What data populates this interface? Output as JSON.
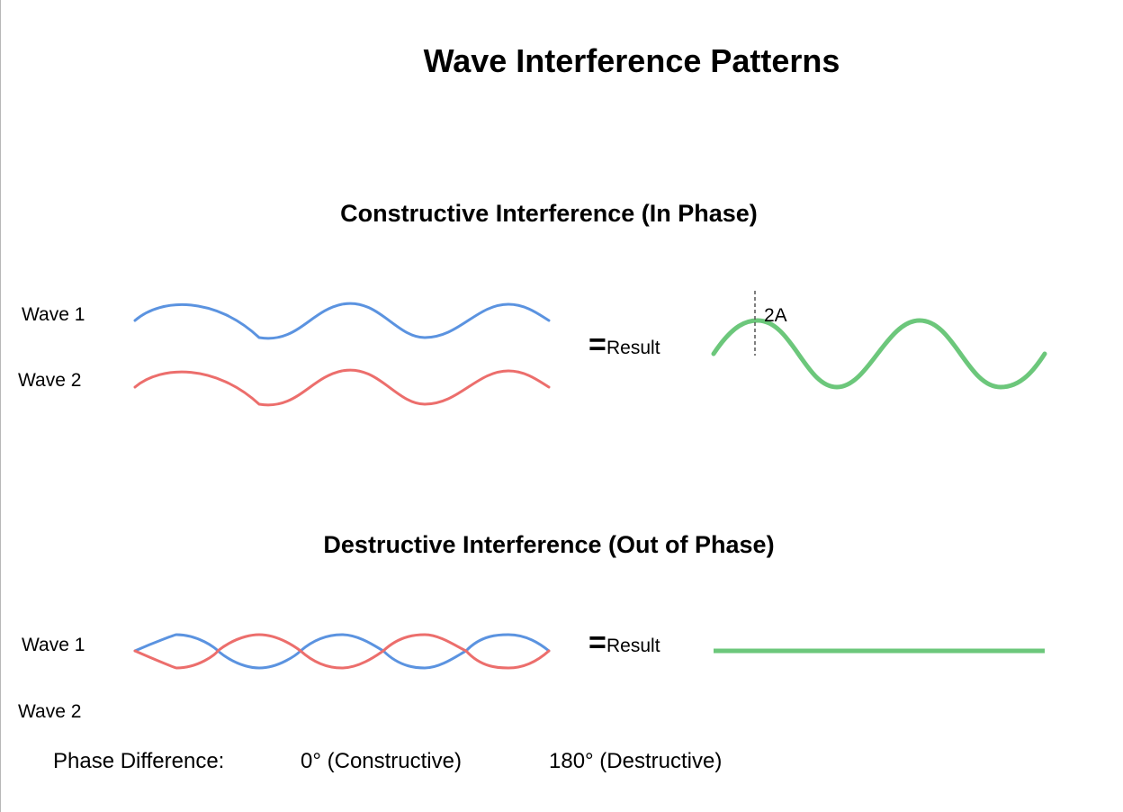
{
  "title": "Wave Interference Patterns",
  "constructive": {
    "heading": "Constructive Interference (In Phase)",
    "wave1_label": "Wave 1",
    "wave2_label": "Wave 2",
    "equals": "=",
    "result_label": "Result",
    "amplitude_label": "2A"
  },
  "destructive": {
    "heading": "Destructive Interference (Out of Phase)",
    "wave1_label": "Wave 1",
    "wave2_label": "Wave 2",
    "equals": "=",
    "result_label": "Result"
  },
  "phase_row": {
    "label": "Phase Difference:",
    "constructive": "0° (Constructive)",
    "destructive": "180° (Destructive)"
  },
  "colors": {
    "wave1": "#5b93e0",
    "wave2": "#ec6e6c",
    "result": "#6cc77b",
    "marker": "#555555"
  }
}
